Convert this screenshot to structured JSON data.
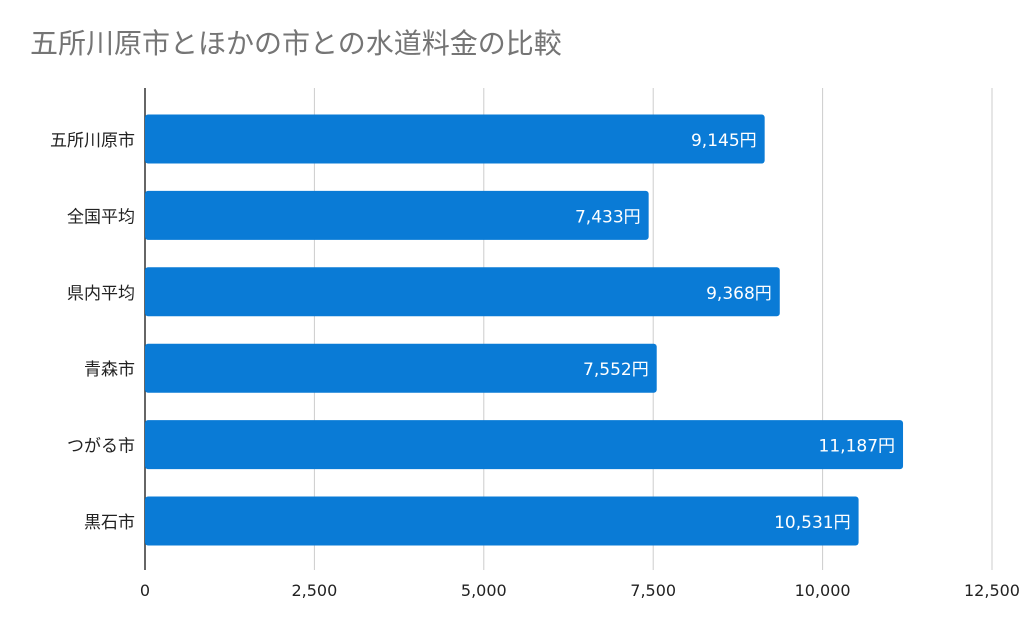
{
  "chart_data": {
    "type": "bar",
    "orientation": "horizontal",
    "title": "五所川原市とほかの市との水道料金の比較",
    "categories": [
      "五所川原市",
      "全国平均",
      "県内平均",
      "青森市",
      "つがる市",
      "黒石市"
    ],
    "series": [
      {
        "values": [
          9145,
          7433,
          9368,
          7552,
          11187,
          10531
        ],
        "data_labels": [
          "9,145円",
          "7,433円",
          "9,368円",
          "7,552円",
          "11,187円",
          "10,531円"
        ],
        "color": "#0a7bd6"
      }
    ],
    "x_ticks": [
      0,
      2500,
      5000,
      7500,
      10000,
      12500
    ],
    "x_tick_labels": [
      "0",
      "2,500",
      "5,000",
      "7,500",
      "10,000",
      "12,500"
    ],
    "xlim": [
      0,
      12500
    ],
    "xlabel": "",
    "ylabel": "",
    "grid": true,
    "legend": "none"
  },
  "colors": {
    "bar": "#0a7bd6",
    "grid": "#cccccc",
    "axis": "#333333",
    "title": "#757575",
    "tick_text": "#222222",
    "label_text": "#ffffff"
  }
}
